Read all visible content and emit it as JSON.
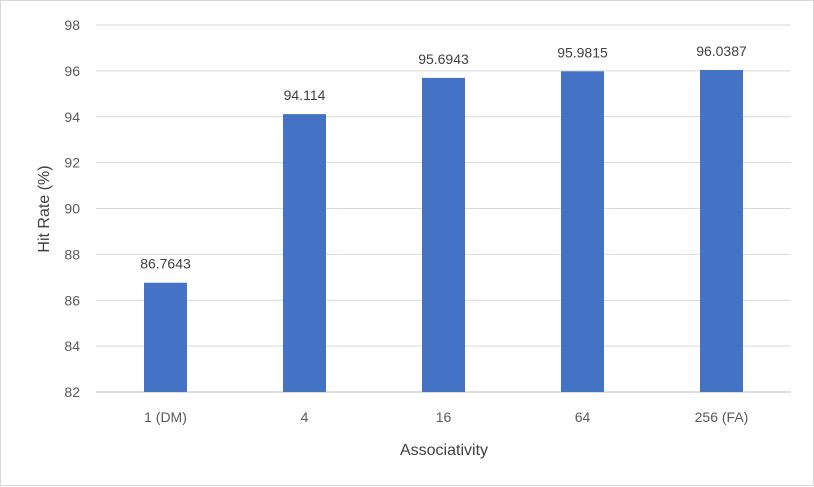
{
  "chart_data": {
    "type": "bar",
    "title": "",
    "xlabel": "Associativity",
    "ylabel": "Hit Rate (%)",
    "categories": [
      "1 (DM)",
      "4",
      "16",
      "64",
      "256 (FA)"
    ],
    "values": [
      86.7643,
      94.114,
      95.6943,
      95.9815,
      96.0387
    ],
    "data_labels": [
      "86.7643",
      "94.114",
      "95.6943",
      "95.9815",
      "96.0387"
    ],
    "ylim": [
      82,
      98
    ],
    "yticks": [
      82,
      84,
      86,
      88,
      90,
      92,
      94,
      96,
      98
    ],
    "grid": true,
    "legend": "none",
    "bar_color": "#4472C4"
  }
}
